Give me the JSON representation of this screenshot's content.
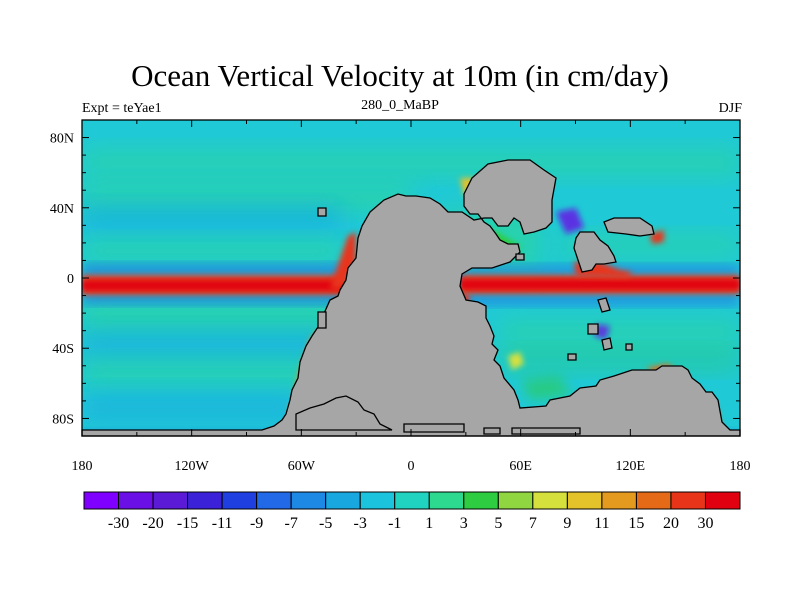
{
  "map": {
    "title": "Ocean Vertical Velocity at 10m (in cm/day)",
    "left_string": "Expt = teYae1",
    "center_string": "280_0_MaBP",
    "right_string": "DJF",
    "lon_ticks": [
      "180",
      "120W",
      "60W",
      "0",
      "60E",
      "120E",
      "180"
    ],
    "lat_ticks": [
      "80N",
      "40N",
      "0",
      "40S",
      "80S"
    ],
    "colorbar": {
      "labels": [
        "-30",
        "-20",
        "-15",
        "-11",
        "-9",
        "-7",
        "-5",
        "-3",
        "-1",
        "1",
        "3",
        "5",
        "7",
        "9",
        "11",
        "15",
        "20",
        "30"
      ],
      "colors": [
        "#7f00ff",
        "#6a0fe6",
        "#5a1ad6",
        "#3b22d8",
        "#1f3fe0",
        "#2169e6",
        "#1e88e5",
        "#19a7e0",
        "#1bc3dc",
        "#20d3c0",
        "#2dd98e",
        "#2ecc40",
        "#8fd640",
        "#d6e03c",
        "#e3c22a",
        "#e39a1e",
        "#e56a17",
        "#e8351a",
        "#e00010"
      ]
    },
    "land_color": "#a6a6a6"
  }
}
